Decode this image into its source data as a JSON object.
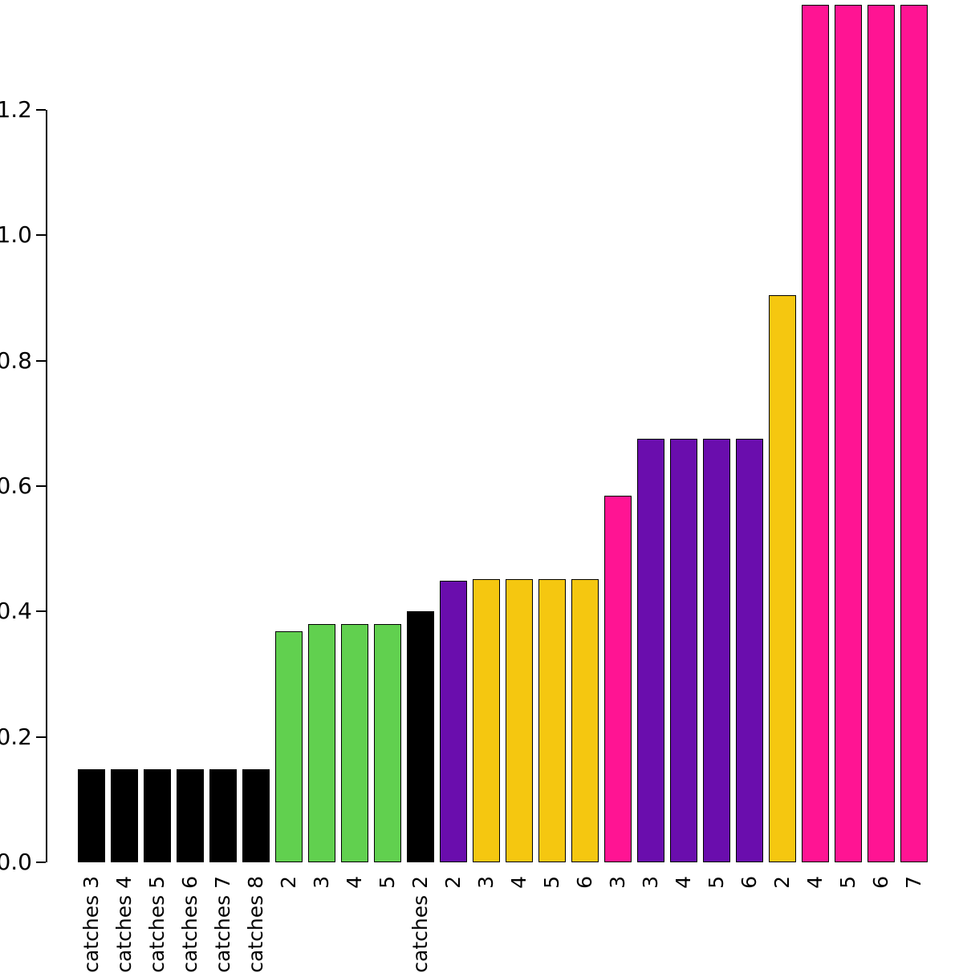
{
  "chart_data": {
    "type": "bar",
    "title": "",
    "xlabel": "",
    "ylabel": "",
    "categories": [
      "catches 3",
      "catches 4",
      "catches 5",
      "catches 6",
      "catches 7",
      "catches 8",
      "2",
      "3",
      "4",
      "5",
      "catches 2",
      "2",
      "3",
      "4",
      "5",
      "6",
      "3",
      "3",
      "4",
      "5",
      "6",
      "2",
      "4",
      "5",
      "6",
      "7"
    ],
    "values": [
      0.148,
      0.148,
      0.148,
      0.148,
      0.148,
      0.148,
      0.368,
      0.38,
      0.38,
      0.38,
      0.4,
      0.449,
      0.452,
      0.452,
      0.452,
      0.452,
      0.585,
      0.675,
      0.675,
      0.675,
      0.675,
      0.905,
      1.368,
      1.368,
      1.368,
      1.368
    ],
    "colors": [
      "#000000",
      "#000000",
      "#000000",
      "#000000",
      "#000000",
      "#000000",
      "#61D04F",
      "#61D04F",
      "#61D04F",
      "#61D04F",
      "#000000",
      "#6A0DAD",
      "#F5C710",
      "#F5C710",
      "#F5C710",
      "#F5C710",
      "#FF1493",
      "#6A0DAD",
      "#6A0DAD",
      "#6A0DAD",
      "#6A0DAD",
      "#F5C710",
      "#FF1493",
      "#FF1493",
      "#FF1493",
      "#FF1493"
    ],
    "palette": {
      "black": "#000000",
      "green": "#61D04F",
      "purple": "#6A0DAD",
      "gold": "#F5C710",
      "pink": "#FF1493"
    },
    "ylim": [
      0,
      1.2
    ],
    "ytick_values": [
      0,
      0.2,
      0.4,
      0.6,
      0.8,
      1.0,
      1.2
    ],
    "ytick_labels": [
      "0.0",
      "0.2",
      "0.4",
      "0.6",
      "0.8",
      "1.0",
      "1.2"
    ],
    "grid": false,
    "legend": null,
    "bars_exceed_ylim": true,
    "x_label_rotation": "vertical"
  }
}
